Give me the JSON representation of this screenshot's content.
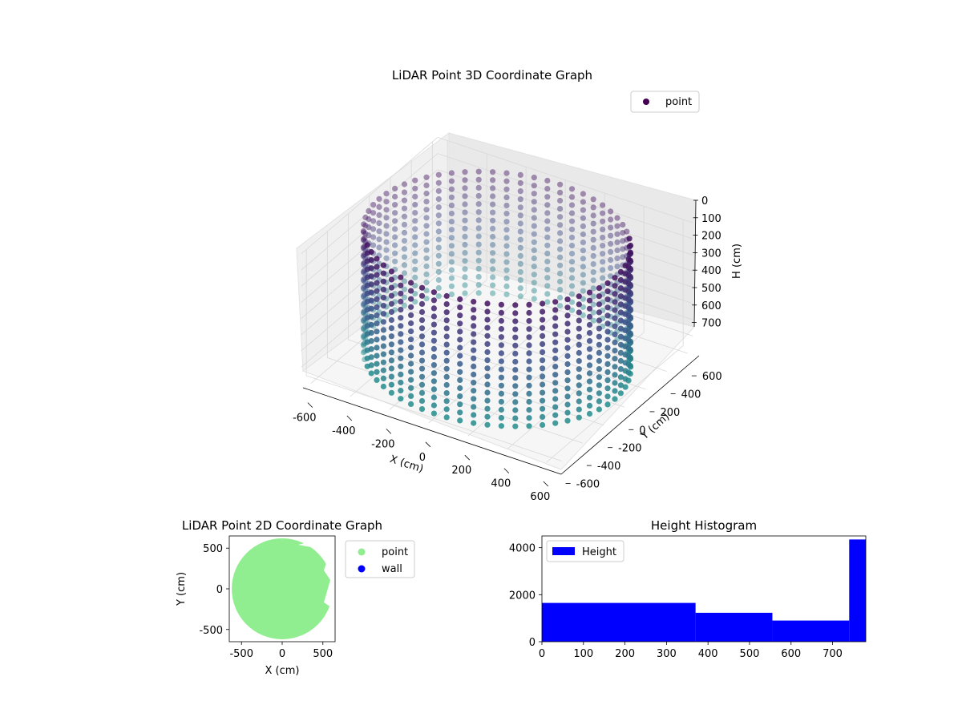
{
  "chart_data": [
    {
      "type": "scatter",
      "projection": "3d",
      "title": "LiDAR Point 3D Coordinate Graph",
      "xlabel": "X (cm)",
      "ylabel": "Y (cm)",
      "zlabel": "H (cm)",
      "xlim": [
        -650,
        650
      ],
      "ylim": [
        -650,
        650
      ],
      "zlim": [
        780,
        0
      ],
      "z_inverted": true,
      "xticks": [
        -600,
        -400,
        -200,
        0,
        200,
        400,
        600
      ],
      "yticks": [
        -600,
        -400,
        -200,
        0,
        200,
        400,
        600
      ],
      "zticks": [
        0,
        100,
        200,
        300,
        400,
        500,
        600,
        700
      ],
      "colormap": "viridis",
      "legend": {
        "entries": [
          "point"
        ],
        "position": "upper-right",
        "color": "#440154"
      },
      "series": [
        {
          "name": "point",
          "shape": "cylindrical wall",
          "radius": 600,
          "height_range": [
            0,
            780
          ],
          "angle_step_deg": 6,
          "height_step": 50
        }
      ],
      "grid": true
    },
    {
      "type": "scatter",
      "title": "LiDAR Point 2D Coordinate Graph",
      "xlabel": "X (cm)",
      "ylabel": "Y (cm)",
      "xlim": [
        -650,
        650
      ],
      "ylim": [
        -650,
        650
      ],
      "xticks": [
        -500,
        0,
        500
      ],
      "yticks": [
        -500,
        0,
        500
      ],
      "legend": {
        "position": "outside-right"
      },
      "series": [
        {
          "name": "point",
          "color": "#90ee90",
          "shape": "filled disk",
          "radius": 620
        },
        {
          "name": "wall",
          "color": "#0000ff"
        }
      ]
    },
    {
      "type": "bar",
      "title": "Height Histogram",
      "xlim": [
        0,
        780
      ],
      "ylim": [
        0,
        4500
      ],
      "xticks": [
        0,
        100,
        200,
        300,
        400,
        500,
        600,
        700
      ],
      "yticks": [
        0,
        2000,
        4000
      ],
      "legend": {
        "entries": [
          "Height"
        ],
        "position": "upper-left"
      },
      "series": [
        {
          "name": "Height",
          "color": "#0000ff",
          "bins": [
            {
              "from": 0,
              "to": 370,
              "count": 1650
            },
            {
              "from": 370,
              "to": 555,
              "count": 1230
            },
            {
              "from": 555,
              "to": 740,
              "count": 900
            },
            {
              "from": 740,
              "to": 780,
              "count": 4350
            }
          ]
        }
      ]
    }
  ]
}
